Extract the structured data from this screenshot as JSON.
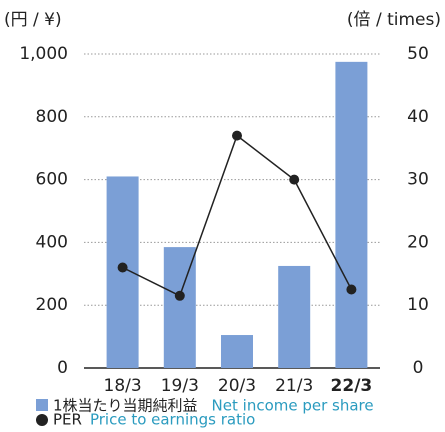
{
  "chart_data": {
    "type": "bar",
    "y_unit": "(円 / ¥)",
    "y2_unit": "(倍 / times)",
    "categories": [
      "18/3",
      "19/3",
      "20/3",
      "21/3",
      "22/3"
    ],
    "series": [
      {
        "name": "1株当たり当期純利益",
        "name_en": "Net income per share",
        "type": "bar",
        "color": "#7b9fd6",
        "values": [
          610,
          385,
          105,
          325,
          975
        ]
      },
      {
        "name": "PER",
        "name_en": "Price to earnings ratio",
        "type": "line",
        "axis": "y2",
        "color": "#222222",
        "values": [
          16,
          11.5,
          37,
          30,
          12.5
        ]
      }
    ],
    "ylim": [
      0,
      1000
    ],
    "yticks": [
      0,
      200,
      400,
      600,
      800,
      {
        "value": 1000,
        "label": "1,000"
      }
    ],
    "y2lim": [
      0,
      50
    ],
    "y2ticks": [
      0,
      10,
      20,
      30,
      40,
      50
    ],
    "grid": true
  }
}
